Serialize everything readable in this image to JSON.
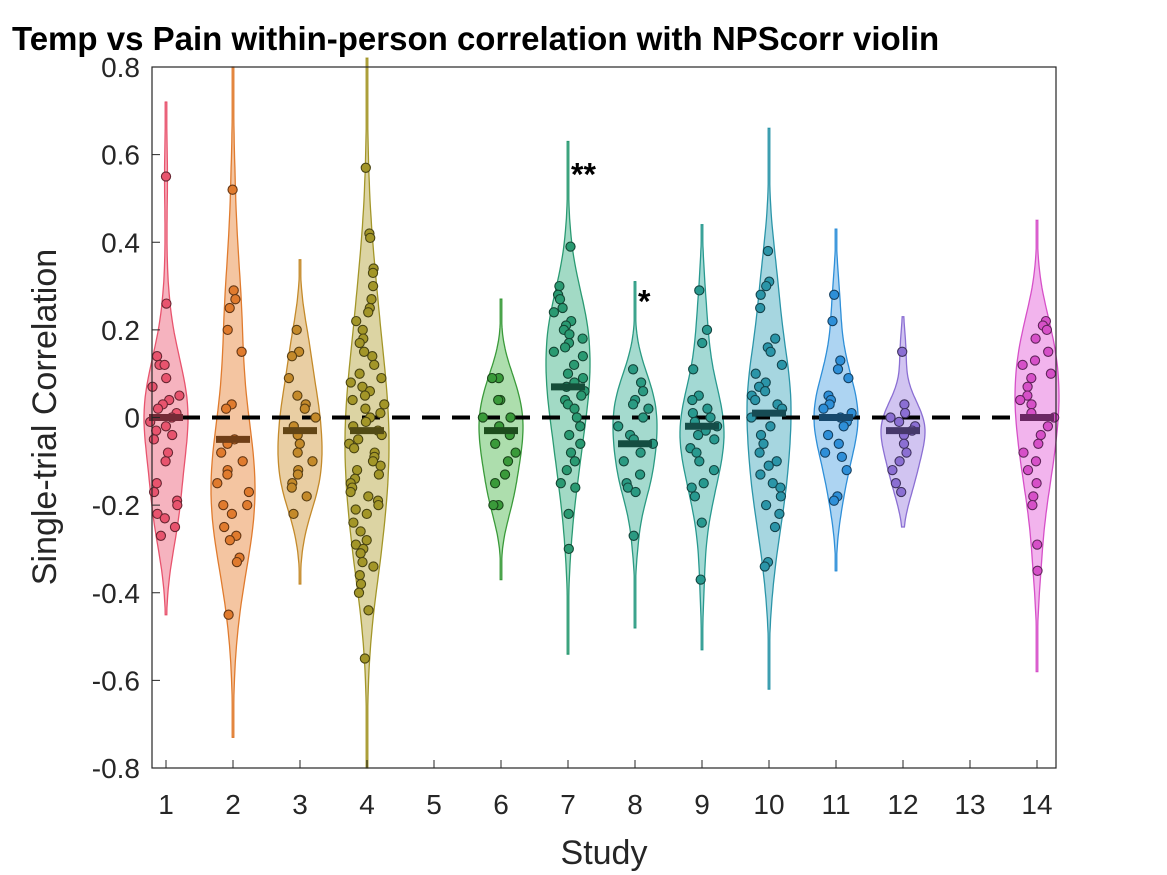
{
  "chart_data": {
    "type": "violin",
    "title": "Temp vs Pain within-person correlation with NPScorr violin",
    "xlabel": "Study",
    "ylabel": "Single-trial Correlation",
    "ylim": [
      -0.8,
      0.8
    ],
    "yticks": [
      -0.8,
      -0.6,
      -0.4,
      -0.2,
      0,
      0.2,
      0.4,
      0.6,
      0.8
    ],
    "ytick_labels": [
      "-0.8",
      "-0.6",
      "-0.4",
      "-0.2",
      "0",
      "0.2",
      "0.4",
      "0.6",
      "0.8"
    ],
    "categories": [
      "1",
      "2",
      "3",
      "4",
      "5",
      "6",
      "7",
      "8",
      "9",
      "10",
      "11",
      "12",
      "13",
      "14"
    ],
    "reference_line": 0,
    "series": [
      {
        "study": "1",
        "color": "#e8546e",
        "fill": "#f5a6b4",
        "range": [
          -0.45,
          0.72
        ],
        "median": 0.0,
        "points": [
          0.55,
          0.26,
          0.14,
          0.12,
          0.12,
          0.09,
          0.07,
          0.05,
          0.04,
          0.03,
          0.02,
          0.01,
          0.0,
          -0.01,
          -0.02,
          -0.03,
          -0.04,
          -0.05,
          -0.08,
          -0.1,
          -0.15,
          -0.17,
          -0.19,
          -0.2,
          -0.22,
          -0.23,
          -0.25,
          -0.27
        ]
      },
      {
        "study": "2",
        "color": "#e07b2e",
        "fill": "#f2bb91",
        "range": [
          -0.73,
          0.8
        ],
        "median": -0.05,
        "points": [
          0.52,
          0.29,
          0.27,
          0.25,
          0.2,
          0.15,
          0.03,
          0.02,
          -0.05,
          -0.06,
          -0.08,
          -0.1,
          -0.12,
          -0.13,
          -0.15,
          -0.17,
          -0.2,
          -0.2,
          -0.22,
          -0.25,
          -0.27,
          -0.28,
          -0.32,
          -0.33,
          -0.45
        ]
      },
      {
        "study": "3",
        "color": "#c48a2a",
        "fill": "#e5c693",
        "range": [
          -0.38,
          0.36
        ],
        "median": -0.03,
        "points": [
          0.2,
          0.15,
          0.14,
          0.09,
          0.05,
          0.03,
          0.02,
          0.0,
          -0.02,
          -0.04,
          -0.06,
          -0.08,
          -0.1,
          -0.12,
          -0.13,
          -0.15,
          -0.16,
          -0.18,
          -0.22
        ]
      },
      {
        "study": "4",
        "color": "#a39628",
        "fill": "#d6cd93",
        "range": [
          -0.8,
          0.82
        ],
        "median": -0.03,
        "points": [
          0.57,
          0.42,
          0.41,
          0.34,
          0.33,
          0.3,
          0.27,
          0.25,
          0.24,
          0.22,
          0.2,
          0.18,
          0.17,
          0.15,
          0.14,
          0.12,
          0.1,
          0.09,
          0.08,
          0.07,
          0.06,
          0.05,
          0.04,
          0.03,
          0.02,
          0.01,
          0.0,
          -0.01,
          -0.02,
          -0.03,
          -0.04,
          -0.05,
          -0.06,
          -0.07,
          -0.08,
          -0.09,
          -0.1,
          -0.11,
          -0.12,
          -0.13,
          -0.14,
          -0.15,
          -0.16,
          -0.17,
          -0.18,
          -0.19,
          -0.2,
          -0.21,
          -0.22,
          -0.24,
          -0.26,
          -0.28,
          -0.29,
          -0.3,
          -0.31,
          -0.33,
          -0.34,
          -0.36,
          -0.38,
          -0.4,
          -0.44,
          -0.55
        ]
      },
      {
        "study": "5",
        "color": "#8c8c8c",
        "fill": "#cccccc",
        "range": null,
        "median": null,
        "points": []
      },
      {
        "study": "6",
        "color": "#3a9a3a",
        "fill": "#9fd89f",
        "range": [
          -0.37,
          0.27
        ],
        "median": -0.03,
        "points": [
          0.09,
          0.09,
          0.04,
          0.04,
          0.0,
          0.0,
          -0.02,
          -0.04,
          -0.06,
          -0.08,
          -0.1,
          -0.13,
          -0.15,
          -0.2,
          -0.2
        ]
      },
      {
        "study": "7",
        "color": "#2a9a72",
        "fill": "#92d4bb",
        "range": [
          -0.54,
          0.63
        ],
        "median": 0.07,
        "points": [
          0.39,
          0.3,
          0.28,
          0.27,
          0.25,
          0.24,
          0.22,
          0.21,
          0.2,
          0.19,
          0.18,
          0.17,
          0.16,
          0.15,
          0.14,
          0.12,
          0.1,
          0.09,
          0.08,
          0.07,
          0.06,
          0.05,
          0.04,
          0.03,
          0.02,
          0.0,
          -0.02,
          -0.04,
          -0.06,
          -0.08,
          -0.1,
          -0.12,
          -0.15,
          -0.16,
          -0.22,
          -0.3
        ]
      },
      {
        "study": "8",
        "color": "#2a9a82",
        "fill": "#94d4c5",
        "range": [
          -0.48,
          0.31
        ],
        "median": -0.06,
        "points": [
          0.11,
          0.08,
          0.06,
          0.04,
          0.03,
          0.02,
          0.0,
          -0.02,
          -0.04,
          -0.05,
          -0.06,
          -0.08,
          -0.1,
          -0.13,
          -0.15,
          -0.16,
          -0.17,
          -0.27
        ]
      },
      {
        "study": "9",
        "color": "#28998f",
        "fill": "#93d2cd",
        "range": [
          -0.53,
          0.44
        ],
        "median": -0.02,
        "points": [
          0.29,
          0.2,
          0.17,
          0.11,
          0.05,
          0.04,
          0.02,
          0.01,
          0.0,
          -0.01,
          -0.02,
          -0.03,
          -0.04,
          -0.05,
          -0.07,
          -0.08,
          -0.1,
          -0.12,
          -0.15,
          -0.16,
          -0.18,
          -0.24,
          -0.37
        ]
      },
      {
        "study": "10",
        "color": "#2b95a8",
        "fill": "#97cfda",
        "range": [
          -0.62,
          0.66
        ],
        "median": 0.01,
        "points": [
          0.38,
          0.31,
          0.3,
          0.28,
          0.25,
          0.18,
          0.16,
          0.15,
          0.12,
          0.1,
          0.08,
          0.07,
          0.06,
          0.05,
          0.04,
          0.03,
          0.02,
          0.0,
          -0.02,
          -0.04,
          -0.06,
          -0.08,
          -0.1,
          -0.11,
          -0.13,
          -0.15,
          -0.16,
          -0.18,
          -0.2,
          -0.22,
          -0.25,
          -0.33,
          -0.34
        ]
      },
      {
        "study": "11",
        "color": "#2e8fd8",
        "fill": "#9fcdf0",
        "range": [
          -0.35,
          0.43
        ],
        "median": 0.0,
        "points": [
          0.28,
          0.22,
          0.13,
          0.11,
          0.09,
          0.05,
          0.04,
          0.03,
          0.02,
          0.01,
          0.0,
          -0.01,
          -0.02,
          -0.04,
          -0.06,
          -0.08,
          -0.09,
          -0.12,
          -0.18,
          -0.19
        ]
      },
      {
        "study": "12",
        "color": "#8b6fd3",
        "fill": "#c9baee",
        "range": [
          -0.25,
          0.23
        ],
        "median": -0.03,
        "points": [
          0.15,
          0.03,
          0.01,
          0.0,
          -0.01,
          -0.02,
          -0.03,
          -0.04,
          -0.06,
          -0.08,
          -0.1,
          -0.12,
          -0.15,
          -0.17
        ]
      },
      {
        "study": "13",
        "color": "#b05fd0",
        "fill": "#ddb3ee",
        "range": null,
        "median": null,
        "points": []
      },
      {
        "study": "14",
        "color": "#d650c8",
        "fill": "#f0a7ea",
        "range": [
          -0.58,
          0.45
        ],
        "median": 0.0,
        "points": [
          0.22,
          0.21,
          0.2,
          0.18,
          0.15,
          0.13,
          0.12,
          0.1,
          0.09,
          0.07,
          0.05,
          0.04,
          0.03,
          0.01,
          0.0,
          -0.02,
          -0.04,
          -0.06,
          -0.08,
          -0.1,
          -0.12,
          -0.15,
          -0.18,
          -0.2,
          -0.29,
          -0.35
        ]
      }
    ],
    "annotations": [
      {
        "text": "**",
        "study": "7",
        "y": 0.58
      },
      {
        "text": "*",
        "study": "8",
        "y": 0.29
      }
    ]
  }
}
